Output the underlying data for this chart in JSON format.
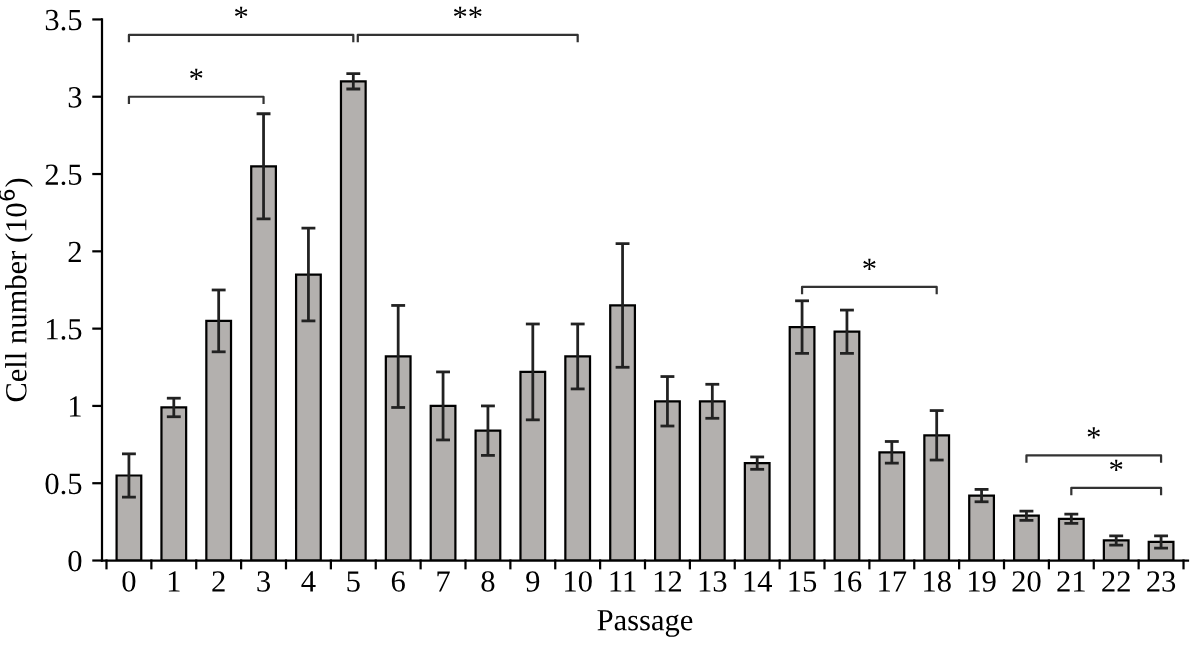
{
  "chart_data": {
    "type": "bar",
    "xlabel": "Passage",
    "ylabel": "Cell number (10$^{6}$)",
    "categories": [
      "0",
      "1",
      "2",
      "3",
      "4",
      "5",
      "6",
      "7",
      "8",
      "9",
      "10",
      "11",
      "12",
      "13",
      "14",
      "15",
      "16",
      "17",
      "18",
      "19",
      "20",
      "21",
      "22",
      "23"
    ],
    "values": [
      0.55,
      0.99,
      1.55,
      2.55,
      1.85,
      3.1,
      1.32,
      1.0,
      0.84,
      1.22,
      1.32,
      1.65,
      1.03,
      1.03,
      0.63,
      1.51,
      1.48,
      0.7,
      0.81,
      0.42,
      0.29,
      0.27,
      0.13,
      0.12
    ],
    "errors": [
      0.14,
      0.06,
      0.2,
      0.34,
      0.3,
      0.05,
      0.33,
      0.22,
      0.16,
      0.31,
      0.21,
      0.4,
      0.16,
      0.11,
      0.04,
      0.17,
      0.14,
      0.07,
      0.16,
      0.04,
      0.03,
      0.03,
      0.03,
      0.04
    ],
    "color": "#b3b0ae",
    "ylim": [
      0,
      3.5
    ],
    "yticks": [
      0,
      0.5,
      1,
      1.5,
      2,
      2.5,
      3,
      3.5
    ],
    "grid": false,
    "legend": false,
    "annotations": [
      "*",
      "**",
      "*",
      "*",
      "*",
      "*"
    ]
  }
}
